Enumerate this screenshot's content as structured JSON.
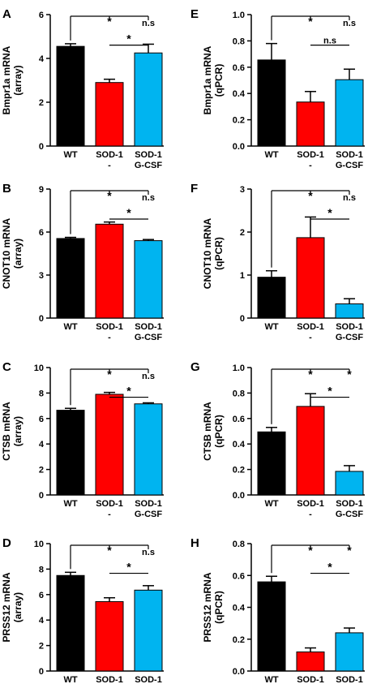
{
  "colors": {
    "axis": "#000000",
    "group_colors": [
      "#000000",
      "#ff0000",
      "#00b4f0"
    ]
  },
  "chart_data": [
    {
      "panel": "A",
      "type": "bar",
      "ylabel": "Bmpr1a mRNA",
      "ylabel2": "(array)",
      "ylim": [
        0,
        6
      ],
      "yticks": [
        "0",
        "2",
        "4",
        "6"
      ],
      "categories": [
        [
          "WT"
        ],
        [
          "SOD-1",
          "-"
        ],
        [
          "SOD-1",
          "G-CSF"
        ]
      ],
      "values": [
        4.55,
        2.9,
        4.25
      ],
      "errors": [
        0.12,
        0.15,
        0.4
      ],
      "sig": [
        "*",
        "n.s",
        "*"
      ]
    },
    {
      "panel": "B",
      "type": "bar",
      "ylabel": "CNOT10 mRNA",
      "ylabel2": "(array)",
      "ylim": [
        0,
        9
      ],
      "yticks": [
        "0",
        "3",
        "6",
        "9"
      ],
      "categories": [
        [
          "WT"
        ],
        [
          "SOD-1",
          "-"
        ],
        [
          "SOD-1",
          "G-CSF"
        ]
      ],
      "values": [
        5.55,
        6.55,
        5.4
      ],
      "errors": [
        0.08,
        0.15,
        0.08
      ],
      "sig": [
        "*",
        "n.s",
        "*"
      ]
    },
    {
      "panel": "C",
      "type": "bar",
      "ylabel": "CTSB mRNA",
      "ylabel2": "(array)",
      "ylim": [
        0,
        10
      ],
      "yticks": [
        "0",
        "2",
        "4",
        "6",
        "8",
        "10"
      ],
      "categories": [
        [
          "WT"
        ],
        [
          "SOD-1",
          "-"
        ],
        [
          "SOD-1",
          "G-CSF"
        ]
      ],
      "values": [
        6.65,
        7.9,
        7.15
      ],
      "errors": [
        0.15,
        0.15,
        0.08
      ],
      "sig": [
        "*",
        "n.s",
        "*"
      ]
    },
    {
      "panel": "D",
      "type": "bar",
      "ylabel": "PRSS12 mRNA",
      "ylabel2": "(array)",
      "ylim": [
        0,
        10
      ],
      "yticks": [
        "0",
        "2",
        "4",
        "6",
        "8",
        "10"
      ],
      "categories": [
        [
          "WT"
        ],
        [
          "SOD-1",
          "-"
        ],
        [
          "SOD-1",
          "G-CSF"
        ]
      ],
      "values": [
        7.5,
        5.45,
        6.35
      ],
      "errors": [
        0.25,
        0.3,
        0.35
      ],
      "sig": [
        "*",
        "n.s",
        "*"
      ]
    },
    {
      "panel": "E",
      "type": "bar",
      "ylabel": "Bmpr1a mRNA",
      "ylabel2": "(qPCR)",
      "ylim": [
        0,
        1.0
      ],
      "yticks": [
        "0.0",
        "0.2",
        "0.4",
        "0.6",
        "0.8",
        "1.0"
      ],
      "categories": [
        [
          "WT"
        ],
        [
          "SOD-1",
          "-"
        ],
        [
          "SOD-1",
          "G-CSF"
        ]
      ],
      "values": [
        0.655,
        0.335,
        0.505
      ],
      "errors": [
        0.125,
        0.08,
        0.08
      ],
      "sig": [
        "*",
        "n.s",
        "n.s"
      ]
    },
    {
      "panel": "F",
      "type": "bar",
      "ylabel": "CNOT10 mRNA",
      "ylabel2": "(qPCR)",
      "ylim": [
        0,
        3
      ],
      "yticks": [
        "0",
        "1",
        "2",
        "3"
      ],
      "categories": [
        [
          "WT"
        ],
        [
          "SOD-1",
          "-"
        ],
        [
          "SOD-1",
          "G-CSF"
        ]
      ],
      "values": [
        0.95,
        1.87,
        0.33
      ],
      "errors": [
        0.15,
        0.48,
        0.12
      ],
      "sig": [
        "*",
        "n.s",
        "*"
      ]
    },
    {
      "panel": "G",
      "type": "bar",
      "ylabel": "CTSB mRNA",
      "ylabel2": "(qPCR)",
      "ylim": [
        0,
        1.0
      ],
      "yticks": [
        "0.0",
        "0.2",
        "0.4",
        "0.6",
        "0.8",
        "1.0"
      ],
      "categories": [
        [
          "WT"
        ],
        [
          "SOD-1",
          "-"
        ],
        [
          "SOD-1",
          "G-CSF"
        ]
      ],
      "values": [
        0.495,
        0.695,
        0.185
      ],
      "errors": [
        0.035,
        0.1,
        0.045
      ],
      "sig": [
        "*",
        "*",
        "*"
      ]
    },
    {
      "panel": "H",
      "type": "bar",
      "ylabel": "PRSS12 mRNA",
      "ylabel2": "(qPCR)",
      "ylim": [
        0,
        0.8
      ],
      "yticks": [
        "0.0",
        "0.2",
        "0.4",
        "0.6",
        "0.8"
      ],
      "categories": [
        [
          "WT"
        ],
        [
          "SOD-1",
          "-"
        ],
        [
          "SOD-1",
          "G-CSF"
        ]
      ],
      "values": [
        0.56,
        0.12,
        0.24
      ],
      "errors": [
        0.035,
        0.025,
        0.03
      ],
      "sig": [
        "*",
        "*",
        "*"
      ]
    }
  ]
}
